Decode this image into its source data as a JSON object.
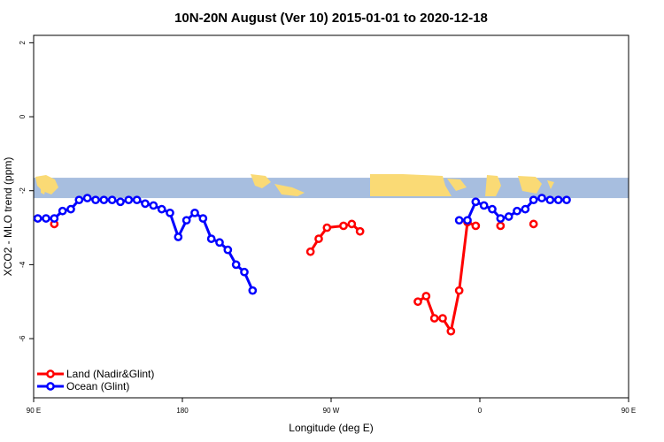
{
  "chart_data": {
    "type": "line",
    "title": "10N-20N August (Ver 10)   2015-01-01 to 2020-12-18",
    "xlabel": "Longitude (deg E)",
    "ylabel": "XCO2 - MLO trend (ppm)",
    "xlim": [
      90,
      450
    ],
    "ylim": [
      -7.6,
      2.2
    ],
    "x_ticks": [
      {
        "value": 90,
        "label": "90 E"
      },
      {
        "value": 180,
        "label": "180"
      },
      {
        "value": 270,
        "label": "90 W"
      },
      {
        "value": 360,
        "label": "0"
      },
      {
        "value": 450,
        "label": "90 E"
      },
      {
        "value": 540,
        "label": "180"
      }
    ],
    "y_ticks": [
      {
        "value": 2,
        "label": "2"
      },
      {
        "value": 0,
        "label": "0"
      },
      {
        "value": -2,
        "label": "-2"
      },
      {
        "value": -4,
        "label": "-4"
      },
      {
        "value": -6,
        "label": "-6"
      }
    ],
    "grid": false,
    "legend_position": "bottom-left",
    "map_strip": {
      "ymin": -2.2,
      "ymax": -1.65,
      "ocean_color": "#a7bedf",
      "land_color": "#fada75"
    },
    "series": [
      {
        "name": "Land (Nadir&Glint)",
        "color": "#ff0000",
        "segments": [
          [
            [
              102.5,
              -2.9
            ]
          ],
          [
            [
              257.5,
              -3.65
            ],
            [
              262.5,
              -3.3
            ],
            [
              267.5,
              -3.0
            ],
            [
              277.5,
              -2.95
            ],
            [
              282.5,
              -2.9
            ],
            [
              287.5,
              -3.1
            ]
          ],
          [
            [
              322.5,
              -5.0
            ],
            [
              327.5,
              -4.85
            ],
            [
              332.5,
              -5.45
            ],
            [
              337.5,
              -5.45
            ],
            [
              342.5,
              -5.8
            ],
            [
              347.5,
              -4.7
            ],
            [
              352.5,
              -2.85
            ],
            [
              357.5,
              -2.95
            ]
          ],
          [
            [
              372.5,
              -2.95
            ]
          ],
          [
            [
              392.5,
              -2.9
            ]
          ]
        ]
      },
      {
        "name": "Ocean (Glint)",
        "color": "#0000ff",
        "segments": [
          [
            [
              92.5,
              -2.75
            ],
            [
              97.5,
              -2.75
            ],
            [
              102.5,
              -2.75
            ],
            [
              107.5,
              -2.55
            ],
            [
              112.5,
              -2.5
            ],
            [
              117.5,
              -2.25
            ],
            [
              122.5,
              -2.2
            ],
            [
              127.5,
              -2.25
            ],
            [
              132.5,
              -2.25
            ],
            [
              137.5,
              -2.25
            ],
            [
              142.5,
              -2.3
            ],
            [
              147.5,
              -2.25
            ],
            [
              152.5,
              -2.25
            ],
            [
              157.5,
              -2.35
            ],
            [
              162.5,
              -2.4
            ],
            [
              167.5,
              -2.5
            ],
            [
              172.5,
              -2.6
            ],
            [
              177.5,
              -3.25
            ],
            [
              182.5,
              -2.8
            ],
            [
              187.5,
              -2.6
            ],
            [
              192.5,
              -2.75
            ],
            [
              197.5,
              -3.3
            ],
            [
              202.5,
              -3.4
            ],
            [
              207.5,
              -3.6
            ],
            [
              212.5,
              -4.0
            ],
            [
              217.5,
              -4.2
            ],
            [
              222.5,
              -4.7
            ]
          ],
          [
            [
              347.5,
              -2.8
            ],
            [
              352.5,
              -2.8
            ],
            [
              357.5,
              -2.3
            ],
            [
              362.5,
              -2.4
            ],
            [
              367.5,
              -2.5
            ],
            [
              372.5,
              -2.75
            ],
            [
              377.5,
              -2.7
            ],
            [
              382.5,
              -2.55
            ],
            [
              387.5,
              -2.5
            ],
            [
              392.5,
              -2.25
            ],
            [
              397.5,
              -2.2
            ],
            [
              402.5,
              -2.25
            ],
            [
              407.5,
              -2.25
            ],
            [
              412.5,
              -2.25
            ]
          ]
        ]
      }
    ]
  }
}
